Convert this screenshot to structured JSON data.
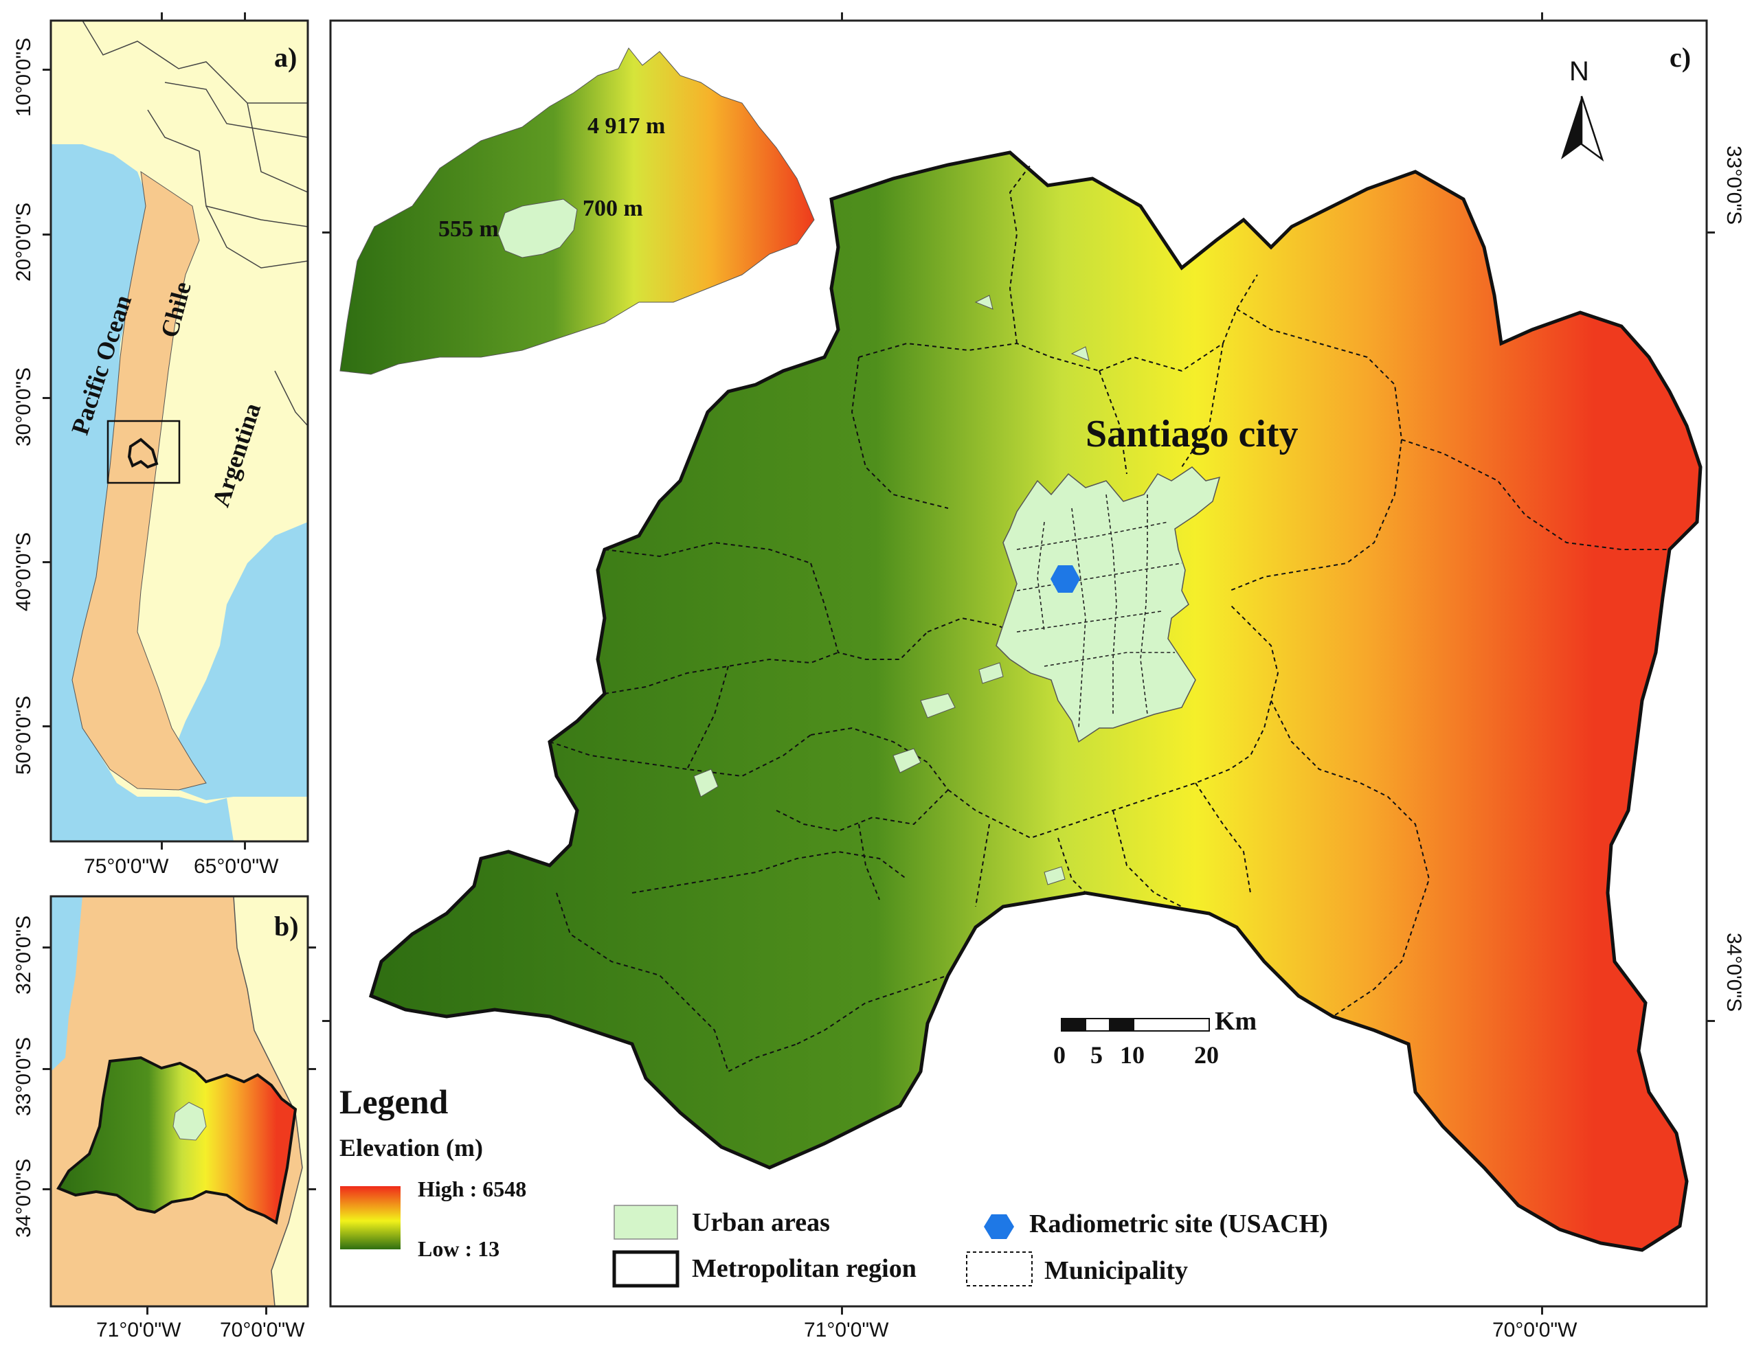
{
  "panels": {
    "a": {
      "label": "a)"
    },
    "b": {
      "label": "b)"
    },
    "c": {
      "label": "c)"
    }
  },
  "panel_a": {
    "ocean": "Pacific Ocean",
    "country1": "Chile",
    "country2": "Argentina",
    "lat_ticks": [
      "10°0'0\"S",
      "20°0'0\"S",
      "30°0'0\"S",
      "40°0'0\"S",
      "50°0'0\"S"
    ],
    "lon_ticks": [
      "75°0'0\"W",
      "65°0'0\"W"
    ]
  },
  "panel_b": {
    "lat_ticks": [
      "32°0'0\"S",
      "33°0'0\"S",
      "34°0'0\"S"
    ],
    "lon_ticks": [
      "71°0'0\"W",
      "70°0'0\"W"
    ]
  },
  "panel_c": {
    "city_label": "Santiago city",
    "inset_labels": {
      "peak": "4 917 m",
      "city": "700 m",
      "low": "555 m"
    },
    "north": "N",
    "lat_ticks": [
      "33°0'0\"S",
      "34°0'0\"S"
    ],
    "lon_ticks": [
      "71°0'0\"W",
      "70°0'0\"W"
    ],
    "scale": {
      "unit": "Km",
      "ticks": [
        "0",
        "5",
        "10",
        "20"
      ]
    }
  },
  "legend": {
    "title": "Legend",
    "elevation_title": "Elevation (m)",
    "high": "High : 6548",
    "low": "Low : 13",
    "items": {
      "urban": "Urban areas",
      "metro": "Metropolitan region",
      "site": "Radiometric site (USACH)",
      "municipality": "Municipality"
    }
  },
  "colors": {
    "ocean": "#9ad8f0",
    "land": "#fdfbc8",
    "chile": "#f7c98d",
    "urban": "#d4f5c9",
    "site": "#1e78e6",
    "elev_low": "#2f6e12",
    "elev_mid": "#f2f21a",
    "elev_high": "#ef2a1a"
  }
}
